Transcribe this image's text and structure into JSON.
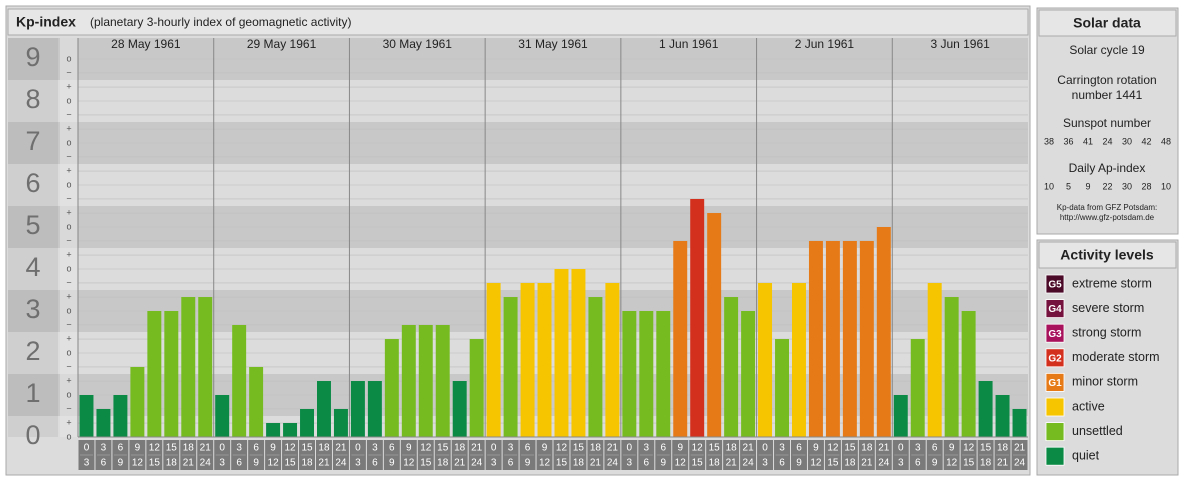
{
  "chart_data": {
    "type": "bar",
    "title": "Kp-index",
    "subtitle": "(planetary 3-hourly index of geomagnetic activity)",
    "ylim": [
      0,
      9
    ],
    "yticks": [
      0,
      1,
      2,
      3,
      4,
      5,
      6,
      7,
      8,
      9
    ],
    "minor_yticks": [
      {
        "value": 0,
        "label": "o"
      },
      {
        "value": 0.333,
        "label": "+"
      },
      {
        "value": 0.667,
        "label": "−"
      },
      {
        "value": 1,
        "label": "o"
      },
      {
        "value": 1.333,
        "label": "+"
      },
      {
        "value": 1.667,
        "label": "−"
      },
      {
        "value": 2,
        "label": "o"
      },
      {
        "value": 2.333,
        "label": "+"
      },
      {
        "value": 2.667,
        "label": "−"
      },
      {
        "value": 3,
        "label": "o"
      },
      {
        "value": 3.333,
        "label": "+"
      },
      {
        "value": 3.667,
        "label": "−"
      },
      {
        "value": 4,
        "label": "o"
      },
      {
        "value": 4.333,
        "label": "+"
      },
      {
        "value": 4.667,
        "label": "−"
      },
      {
        "value": 5,
        "label": "o"
      },
      {
        "value": 5.333,
        "label": "+"
      },
      {
        "value": 5.667,
        "label": "−"
      },
      {
        "value": 6,
        "label": "o"
      },
      {
        "value": 6.333,
        "label": "+"
      },
      {
        "value": 6.667,
        "label": "−"
      },
      {
        "value": 7,
        "label": "o"
      },
      {
        "value": 7.333,
        "label": "+"
      },
      {
        "value": 7.667,
        "label": "−"
      },
      {
        "value": 8,
        "label": "o"
      },
      {
        "value": 8.333,
        "label": "+"
      },
      {
        "value": 8.667,
        "label": "−"
      },
      {
        "value": 9,
        "label": "o"
      }
    ],
    "intervals": [
      {
        "from": 0,
        "to": 3
      },
      {
        "from": 3,
        "to": 6
      },
      {
        "from": 6,
        "to": 9
      },
      {
        "from": 9,
        "to": 12
      },
      {
        "from": 12,
        "to": 15
      },
      {
        "from": 15,
        "to": 18
      },
      {
        "from": 18,
        "to": 21
      },
      {
        "from": 21,
        "to": 24
      }
    ],
    "days": [
      {
        "date": "28 May 1961",
        "values": [
          1,
          0.667,
          1,
          1.667,
          3,
          3,
          3.333,
          3.333
        ],
        "colors": [
          "#0b8a45",
          "#0b8a45",
          "#0b8a45",
          "#76bc21",
          "#76bc21",
          "#76bc21",
          "#76bc21",
          "#76bc21"
        ]
      },
      {
        "date": "29 May 1961",
        "values": [
          1,
          2.667,
          1.667,
          0.333,
          0.333,
          0.667,
          1.333,
          0.667
        ],
        "colors": [
          "#0b8a45",
          "#76bc21",
          "#76bc21",
          "#0b8a45",
          "#0b8a45",
          "#0b8a45",
          "#0b8a45",
          "#0b8a45"
        ]
      },
      {
        "date": "30 May 1961",
        "values": [
          1.333,
          1.333,
          2.333,
          2.667,
          2.667,
          2.667,
          1.333,
          2.333
        ],
        "colors": [
          "#0b8a45",
          "#0b8a45",
          "#76bc21",
          "#76bc21",
          "#76bc21",
          "#76bc21",
          "#0b8a45",
          "#76bc21"
        ]
      },
      {
        "date": "31 May 1961",
        "values": [
          3.667,
          3.333,
          3.667,
          3.667,
          4,
          4,
          3.333,
          3.667
        ],
        "colors": [
          "#f7c400",
          "#76bc21",
          "#f7c400",
          "#f7c400",
          "#f7c400",
          "#f7c400",
          "#76bc21",
          "#f7c400"
        ]
      },
      {
        "date": "1 Jun 1961",
        "values": [
          3,
          3,
          3,
          4.667,
          5.667,
          5.333,
          3.333,
          3
        ],
        "colors": [
          "#76bc21",
          "#76bc21",
          "#76bc21",
          "#e67a17",
          "#d4301e",
          "#e67a17",
          "#76bc21",
          "#76bc21"
        ]
      },
      {
        "date": "2 Jun 1961",
        "values": [
          3.667,
          2.333,
          3.667,
          4.667,
          4.667,
          4.667,
          4.667,
          5
        ],
        "colors": [
          "#f7c400",
          "#76bc21",
          "#f7c400",
          "#e67a17",
          "#e67a17",
          "#e67a17",
          "#e67a17",
          "#e67a17"
        ]
      },
      {
        "date": "3 Jun 1961",
        "values": [
          1,
          2.333,
          3.667,
          3.333,
          3,
          1.333,
          1,
          0.667
        ],
        "colors": [
          "#0b8a45",
          "#76bc21",
          "#f7c400",
          "#76bc21",
          "#76bc21",
          "#0b8a45",
          "#0b8a45",
          "#0b8a45"
        ]
      }
    ]
  },
  "solar": {
    "title": "Solar data",
    "cycle": "Solar cycle 19",
    "carrington": [
      "Carrington rotation",
      "number 1441"
    ],
    "sunspot_title": "Sunspot number",
    "sunspot": [
      38,
      36,
      41,
      24,
      30,
      42,
      48
    ],
    "ap_title": "Daily Ap-index",
    "ap": [
      10,
      5,
      9,
      22,
      30,
      28,
      10
    ],
    "source": [
      "Kp-data from GFZ Potsdam:",
      "http://www.gfz-potsdam.de"
    ]
  },
  "levels": {
    "title": "Activity levels",
    "items": [
      {
        "badge": "G5",
        "label": "extreme storm",
        "color": "#4a0a28"
      },
      {
        "badge": "G4",
        "label": "severe storm",
        "color": "#76123e"
      },
      {
        "badge": "G3",
        "label": "strong storm",
        "color": "#a8125c"
      },
      {
        "badge": "G2",
        "label": "moderate storm",
        "color": "#d4301e"
      },
      {
        "badge": "G1",
        "label": "minor storm",
        "color": "#e67a17"
      },
      {
        "label": "active",
        "color": "#f7c400"
      },
      {
        "label": "unsettled",
        "color": "#76bc21"
      },
      {
        "label": "quiet",
        "color": "#0b8a45"
      }
    ]
  }
}
